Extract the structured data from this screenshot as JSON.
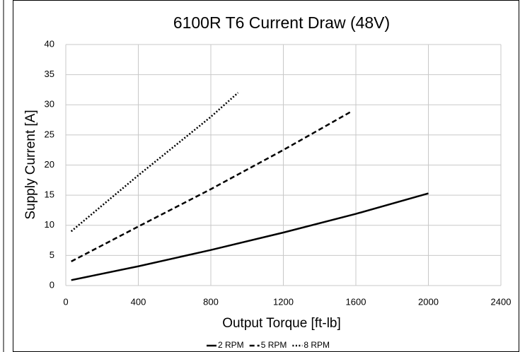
{
  "chart_data": {
    "type": "line",
    "title": "6100R T6 Current Draw (48V)",
    "x_label": "Output Torque [ft-lb]",
    "y_label": "Supply Current [A]",
    "xlim": [
      0,
      2400
    ],
    "xticks": [
      0,
      400,
      800,
      1200,
      1600,
      2000,
      2400
    ],
    "ylim": [
      0,
      40
    ],
    "yticks": [
      0,
      5,
      10,
      15,
      20,
      25,
      30,
      35,
      40
    ],
    "grid": true,
    "legend": "bottom",
    "series": [
      {
        "name": "2 RPM",
        "color": "#000000",
        "style": "solid",
        "x": [
          30,
          400,
          800,
          1200,
          1600,
          2000
        ],
        "values": [
          0.9,
          3.2,
          5.9,
          8.8,
          11.9,
          15.3
        ]
      },
      {
        "name": "5 RPM",
        "color": "#000000",
        "style": "dashed",
        "x": [
          30,
          400,
          800,
          1200,
          1570
        ],
        "values": [
          4,
          9.8,
          16,
          22.5,
          28.8
        ]
      },
      {
        "name": "8 RPM",
        "color": "#000000",
        "style": "dotted",
        "x": [
          30,
          400,
          800,
          950
        ],
        "values": [
          9,
          18.3,
          28,
          32
        ]
      }
    ]
  }
}
